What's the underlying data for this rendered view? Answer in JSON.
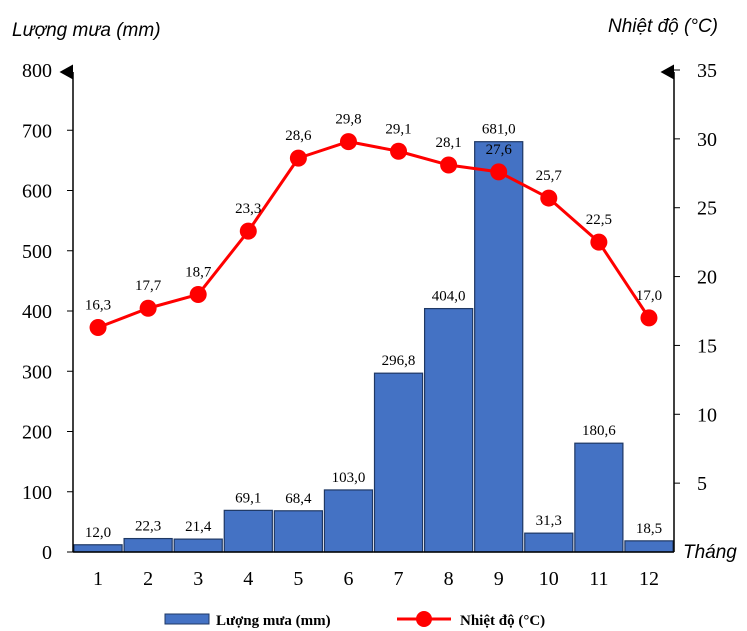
{
  "chart_data": {
    "type": "bar+line",
    "categories": [
      "1",
      "2",
      "3",
      "4",
      "5",
      "6",
      "7",
      "8",
      "9",
      "10",
      "11",
      "12"
    ],
    "series": [
      {
        "name": "Lượng mưa (mm)",
        "kind": "bar",
        "axis": "left",
        "values": [
          12.0,
          22.3,
          21.4,
          69.1,
          68.4,
          103.0,
          296.8,
          404.0,
          681.0,
          31.3,
          180.6,
          18.5
        ],
        "labels": [
          "12,0",
          "22,3",
          "21,4",
          "69,1",
          "68,4",
          "103,0",
          "296,8",
          "404,0",
          "681,0",
          "31,3",
          "180,6",
          "18,5"
        ],
        "color": "#4472C4"
      },
      {
        "name": "Nhiệt độ (°C)",
        "kind": "line",
        "axis": "right",
        "values": [
          16.3,
          17.7,
          18.7,
          23.3,
          28.6,
          29.8,
          29.1,
          28.1,
          27.6,
          25.7,
          22.5,
          17.0
        ],
        "labels": [
          "16,3",
          "17,7",
          "18,7",
          "23,3",
          "28,6",
          "29,8",
          "29,1",
          "28,1",
          "27,6",
          "25,7",
          "22,5",
          "17,0"
        ],
        "color": "#FF0000"
      }
    ],
    "left_axis": {
      "title": "Lượng mưa (mm)",
      "range": [
        0,
        800
      ],
      "ticks": [
        0,
        100,
        200,
        300,
        400,
        500,
        600,
        700,
        800
      ]
    },
    "right_axis": {
      "title": "Nhiệt độ (°C)",
      "range": [
        0,
        35
      ],
      "ticks": [
        5,
        10,
        15,
        20,
        25,
        30,
        35
      ]
    },
    "x_axis": {
      "title": "Tháng"
    },
    "legend": {
      "placement": "bottom"
    },
    "grid": false
  }
}
